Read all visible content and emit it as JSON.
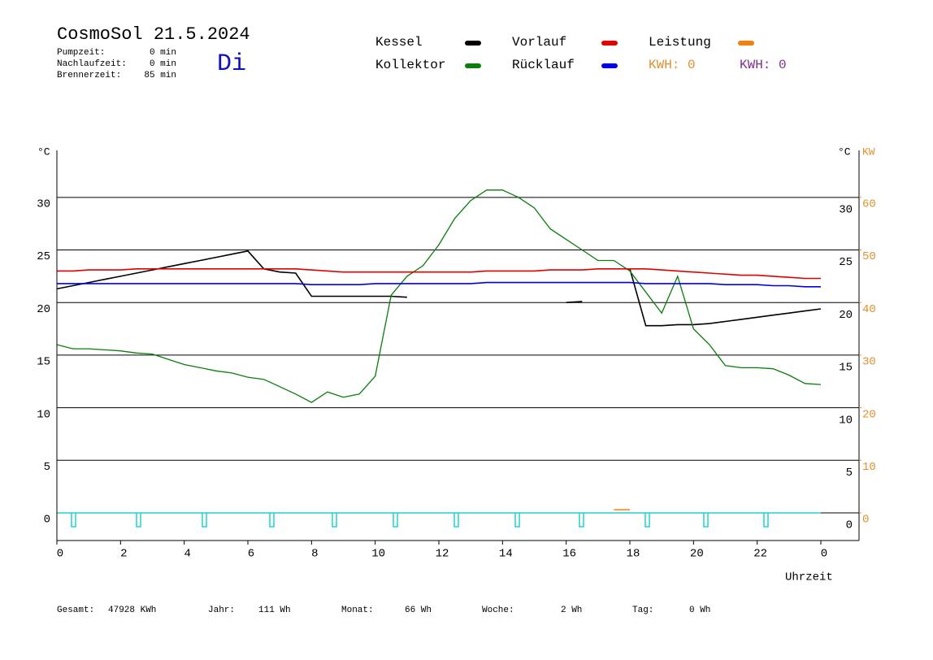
{
  "chart_data": {
    "type": "line",
    "title": "CosmoSol 21.5.2024",
    "day": "Di",
    "info": [
      {
        "label": "Pumpzeit:",
        "value": "0 min"
      },
      {
        "label": "Nachlaufzeit:",
        "value": "0 min"
      },
      {
        "label": "Brennerzeit:",
        "value": "85 min"
      }
    ],
    "kwh_labels": [
      {
        "text": "KWH: 0",
        "color": "#e09030"
      },
      {
        "text": "KWH: 0",
        "color": "#803090"
      }
    ],
    "y_unit": "°C",
    "y2_unit": "KW",
    "xlabel": "Uhrzeit",
    "xlim": [
      0,
      25.2
    ],
    "xticks": [
      0,
      2,
      4,
      6,
      8,
      10,
      12,
      14,
      16,
      18,
      20,
      22,
      {
        "value": 24,
        "label": "0"
      }
    ],
    "ylim": [
      -2.63,
      34.47
    ],
    "yticks": [
      0,
      5,
      10,
      15,
      20,
      25,
      30
    ],
    "y2lim": [
      -5.26,
      68.94
    ],
    "y2ticks": [
      0,
      10,
      20,
      30,
      40,
      50,
      60
    ],
    "grid": true,
    "x": [
      0,
      0.5,
      1,
      1.5,
      2,
      2.5,
      3,
      3.5,
      4,
      4.5,
      5,
      5.5,
      6,
      6.5,
      7,
      7.5,
      8,
      8.5,
      9,
      9.5,
      10,
      10.5,
      11,
      11.5,
      12,
      12.5,
      13,
      13.5,
      14,
      14.5,
      15,
      15.5,
      16,
      16.5,
      17,
      17.5,
      18,
      18.5,
      19,
      19.5,
      20,
      20.5,
      21,
      21.5,
      22,
      22.5,
      23,
      23.5,
      24
    ],
    "series": [
      {
        "name": "Kessel",
        "color": "#000000",
        "values": [
          21.3,
          21.6,
          21.9,
          22.2,
          22.5,
          22.8,
          23.1,
          23.4,
          23.7,
          24.0,
          24.3,
          24.6,
          24.9,
          23.2,
          22.9,
          22.8,
          20.6,
          20.6,
          20.6,
          20.6,
          20.6,
          20.6,
          20.5,
          null,
          null,
          null,
          null,
          null,
          null,
          null,
          null,
          null,
          20.0,
          20.1,
          null,
          null,
          23.2,
          17.8,
          17.8,
          17.9,
          17.9,
          18.0,
          18.2,
          18.4,
          18.6,
          18.8,
          19.0,
          19.2,
          19.4
        ]
      },
      {
        "name": "Kollektor",
        "color": "#0a7d0a",
        "values": [
          16.0,
          15.6,
          15.6,
          15.5,
          15.4,
          15.2,
          15.1,
          14.6,
          14.1,
          13.8,
          13.5,
          13.3,
          12.9,
          12.7,
          12.0,
          11.3,
          10.5,
          11.5,
          11.0,
          11.3,
          13.0,
          20.7,
          22.5,
          23.5,
          25.5,
          28.0,
          29.7,
          30.7,
          30.7,
          30.0,
          29.0,
          27.0,
          26.0,
          25.0,
          24.0,
          24.0,
          23.0,
          21.0,
          19.0,
          22.5,
          17.5,
          16.0,
          14.0,
          13.8,
          13.8,
          13.7,
          13.1,
          12.3,
          12.2
        ]
      },
      {
        "name": "Vorlauf",
        "color": "#e00000",
        "values": [
          23.0,
          23.0,
          23.1,
          23.1,
          23.1,
          23.2,
          23.2,
          23.2,
          23.2,
          23.2,
          23.2,
          23.2,
          23.2,
          23.2,
          23.2,
          23.2,
          23.1,
          23.0,
          22.9,
          22.9,
          22.9,
          22.9,
          22.9,
          22.9,
          22.9,
          22.9,
          22.9,
          23.0,
          23.0,
          23.0,
          23.0,
          23.1,
          23.1,
          23.1,
          23.2,
          23.2,
          23.2,
          23.2,
          23.1,
          23.0,
          22.9,
          22.8,
          22.7,
          22.6,
          22.6,
          22.5,
          22.4,
          22.3,
          22.3
        ]
      },
      {
        "name": "Rücklauf",
        "color": "#0000e0",
        "values": [
          21.8,
          21.8,
          21.8,
          21.8,
          21.8,
          21.8,
          21.8,
          21.8,
          21.8,
          21.8,
          21.8,
          21.8,
          21.8,
          21.8,
          21.8,
          21.8,
          21.7,
          21.7,
          21.7,
          21.7,
          21.8,
          21.8,
          21.8,
          21.8,
          21.8,
          21.8,
          21.8,
          21.9,
          21.9,
          21.9,
          21.9,
          21.9,
          21.9,
          21.9,
          21.9,
          21.9,
          21.9,
          21.8,
          21.8,
          21.8,
          21.8,
          21.8,
          21.7,
          21.7,
          21.7,
          21.6,
          21.6,
          21.5,
          21.5
        ]
      },
      {
        "name": "Leistung",
        "color": "#f08010",
        "axis": "y2",
        "values": [
          null,
          null,
          null,
          null,
          null,
          null,
          null,
          null,
          null,
          null,
          null,
          null,
          null,
          null,
          null,
          null,
          null,
          null,
          null,
          null,
          null,
          null,
          null,
          null,
          null,
          null,
          null,
          null,
          null,
          null,
          null,
          null,
          null,
          null,
          null,
          0.6,
          0.6,
          null,
          null,
          null,
          null,
          null,
          null,
          null,
          null,
          null,
          null,
          null,
          null
        ]
      }
    ],
    "footer": [
      {
        "label": "Gesamt:",
        "value": "47928 KWh"
      },
      {
        "label": "Jahr:",
        "value": "111 Wh"
      },
      {
        "label": "Monat:",
        "value": "66 Wh"
      },
      {
        "label": "Woche:",
        "value": "2 Wh"
      },
      {
        "label": "Tag:",
        "value": "0 Wh"
      }
    ]
  }
}
